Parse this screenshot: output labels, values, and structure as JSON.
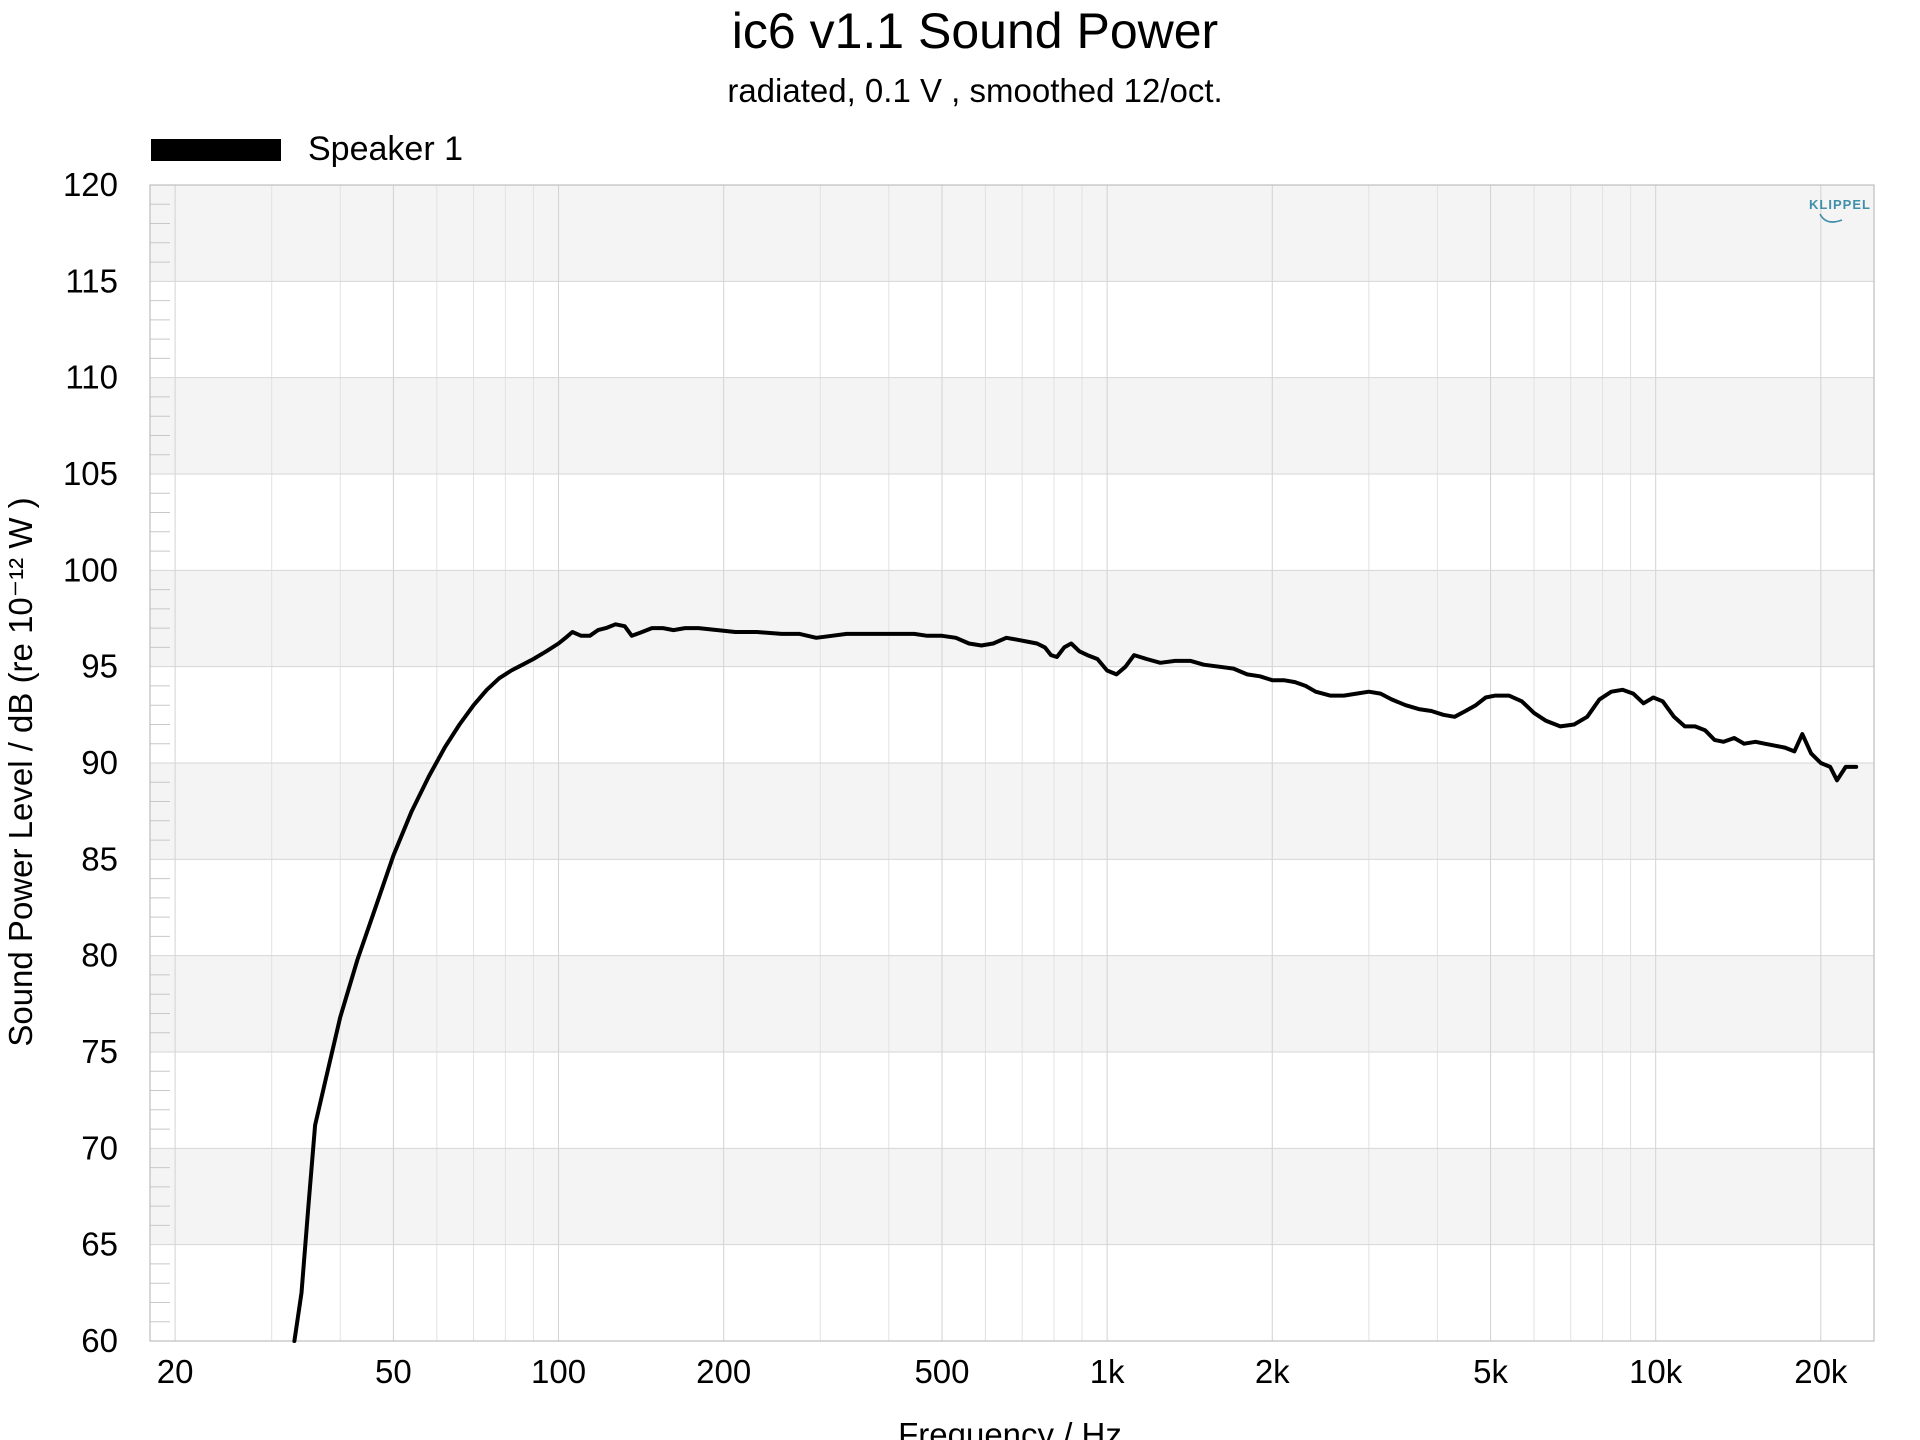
{
  "chart_data": {
    "type": "line",
    "title": "ic6 v1.1 Sound Power",
    "subtitle": "radiated,  0.1 V , smoothed 12/oct.",
    "xlabel": "Frequency / Hz",
    "ylabel": "Sound Power Level / dB (re 10⁻¹² W )",
    "xscale": "log",
    "xlim": [
      18,
      25000
    ],
    "ylim": [
      60,
      120
    ],
    "y_ticks": [
      60,
      65,
      70,
      75,
      80,
      85,
      90,
      95,
      100,
      105,
      110,
      115,
      120
    ],
    "x_ticks": [
      {
        "value": 20,
        "label": "20"
      },
      {
        "value": 50,
        "label": "50"
      },
      {
        "value": 100,
        "label": "100"
      },
      {
        "value": 200,
        "label": "200"
      },
      {
        "value": 500,
        "label": "500"
      },
      {
        "value": 1000,
        "label": "1k"
      },
      {
        "value": 2000,
        "label": "2k"
      },
      {
        "value": 5000,
        "label": "5k"
      },
      {
        "value": 10000,
        "label": "10k"
      },
      {
        "value": 20000,
        "label": "20k"
      }
    ],
    "grid": true,
    "legend_position": "top-left",
    "series": [
      {
        "name": "Speaker 1",
        "color": "#000000",
        "points": [
          [
            33,
            60.0
          ],
          [
            34,
            62.5
          ],
          [
            35,
            67.0
          ],
          [
            36,
            71.2
          ],
          [
            37.5,
            73.4
          ],
          [
            40,
            76.8
          ],
          [
            43,
            79.8
          ],
          [
            46,
            82.2
          ],
          [
            50,
            85.2
          ],
          [
            54,
            87.5
          ],
          [
            58,
            89.3
          ],
          [
            62,
            90.8
          ],
          [
            66,
            92.0
          ],
          [
            70,
            93.0
          ],
          [
            74,
            93.8
          ],
          [
            78,
            94.4
          ],
          [
            82,
            94.8
          ],
          [
            86,
            95.1
          ],
          [
            90,
            95.4
          ],
          [
            95,
            95.8
          ],
          [
            100,
            96.2
          ],
          [
            103,
            96.5
          ],
          [
            106,
            96.8
          ],
          [
            110,
            96.6
          ],
          [
            114,
            96.6
          ],
          [
            118,
            96.9
          ],
          [
            122,
            97.0
          ],
          [
            127,
            97.2
          ],
          [
            132,
            97.1
          ],
          [
            136,
            96.6
          ],
          [
            142,
            96.8
          ],
          [
            148,
            97.0
          ],
          [
            155,
            97.0
          ],
          [
            162,
            96.9
          ],
          [
            170,
            97.0
          ],
          [
            180,
            97.0
          ],
          [
            195,
            96.9
          ],
          [
            210,
            96.8
          ],
          [
            230,
            96.8
          ],
          [
            255,
            96.7
          ],
          [
            275,
            96.7
          ],
          [
            295,
            96.5
          ],
          [
            315,
            96.6
          ],
          [
            335,
            96.7
          ],
          [
            355,
            96.7
          ],
          [
            375,
            96.7
          ],
          [
            400,
            96.7
          ],
          [
            420,
            96.7
          ],
          [
            445,
            96.7
          ],
          [
            470,
            96.6
          ],
          [
            500,
            96.6
          ],
          [
            530,
            96.5
          ],
          [
            560,
            96.2
          ],
          [
            590,
            96.1
          ],
          [
            620,
            96.2
          ],
          [
            655,
            96.5
          ],
          [
            685,
            96.4
          ],
          [
            715,
            96.3
          ],
          [
            745,
            96.2
          ],
          [
            770,
            96.0
          ],
          [
            790,
            95.6
          ],
          [
            810,
            95.5
          ],
          [
            835,
            96.0
          ],
          [
            860,
            96.2
          ],
          [
            890,
            95.8
          ],
          [
            920,
            95.6
          ],
          [
            960,
            95.4
          ],
          [
            1000,
            94.8
          ],
          [
            1040,
            94.6
          ],
          [
            1080,
            95.0
          ],
          [
            1120,
            95.6
          ],
          [
            1180,
            95.4
          ],
          [
            1250,
            95.2
          ],
          [
            1330,
            95.3
          ],
          [
            1420,
            95.3
          ],
          [
            1500,
            95.1
          ],
          [
            1600,
            95.0
          ],
          [
            1700,
            94.9
          ],
          [
            1800,
            94.6
          ],
          [
            1900,
            94.5
          ],
          [
            2000,
            94.3
          ],
          [
            2100,
            94.3
          ],
          [
            2200,
            94.2
          ],
          [
            2300,
            94.0
          ],
          [
            2400,
            93.7
          ],
          [
            2550,
            93.5
          ],
          [
            2700,
            93.5
          ],
          [
            2850,
            93.6
          ],
          [
            3000,
            93.7
          ],
          [
            3150,
            93.6
          ],
          [
            3300,
            93.3
          ],
          [
            3500,
            93.0
          ],
          [
            3700,
            92.8
          ],
          [
            3900,
            92.7
          ],
          [
            4100,
            92.5
          ],
          [
            4300,
            92.4
          ],
          [
            4500,
            92.7
          ],
          [
            4700,
            93.0
          ],
          [
            4900,
            93.4
          ],
          [
            5100,
            93.5
          ],
          [
            5400,
            93.5
          ],
          [
            5700,
            93.2
          ],
          [
            6000,
            92.6
          ],
          [
            6300,
            92.2
          ],
          [
            6700,
            91.9
          ],
          [
            7100,
            92.0
          ],
          [
            7500,
            92.4
          ],
          [
            7900,
            93.3
          ],
          [
            8300,
            93.7
          ],
          [
            8700,
            93.8
          ],
          [
            9100,
            93.6
          ],
          [
            9500,
            93.1
          ],
          [
            9900,
            93.4
          ],
          [
            10300,
            93.2
          ],
          [
            10800,
            92.4
          ],
          [
            11300,
            91.9
          ],
          [
            11800,
            91.9
          ],
          [
            12300,
            91.7
          ],
          [
            12800,
            91.2
          ],
          [
            13300,
            91.1
          ],
          [
            13900,
            91.3
          ],
          [
            14500,
            91.0
          ],
          [
            15200,
            91.1
          ],
          [
            15800,
            91.0
          ],
          [
            16500,
            90.9
          ],
          [
            17200,
            90.8
          ],
          [
            17900,
            90.6
          ],
          [
            18500,
            91.5
          ],
          [
            19200,
            90.5
          ],
          [
            20000,
            90.0
          ],
          [
            20800,
            89.8
          ],
          [
            21400,
            89.1
          ],
          [
            22200,
            89.8
          ],
          [
            23200,
            89.8
          ]
        ]
      }
    ]
  },
  "logo": {
    "text": "KLIPPEL",
    "color": "#3f8fa8"
  }
}
